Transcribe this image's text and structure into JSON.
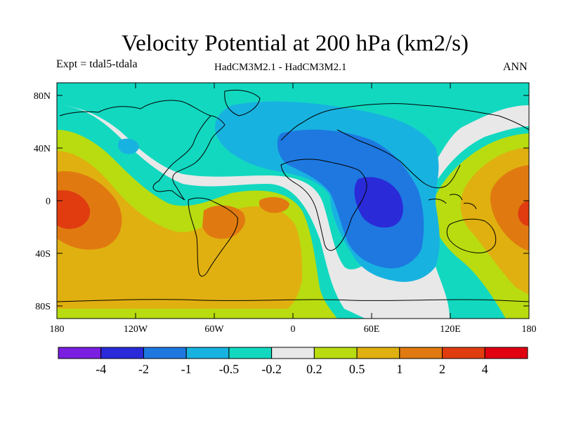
{
  "title": "Velocity Potential at 200 hPa (km2/s)",
  "expt_label": "Expt = tdal5-tdala",
  "model_label": "HadCM3M2.1 - HadCM3M2.1",
  "season_label": "ANN",
  "lat_ticks": [
    "80N",
    "40N",
    "0",
    "40S",
    "80S"
  ],
  "lon_ticks": [
    "180",
    "120W",
    "60W",
    "0",
    "60E",
    "120E",
    "180"
  ],
  "colorbar": {
    "colors": [
      "#7a1fe0",
      "#2a2ad8",
      "#1e78e0",
      "#18b2e0",
      "#12d8c0",
      "#e8e8e8",
      "#b8dc10",
      "#e0b010",
      "#e07a10",
      "#e03c10",
      "#e00010"
    ],
    "labels": [
      "-4",
      "-2",
      "-1",
      "-0.5",
      "-0.2",
      "0.2",
      "0.5",
      "1",
      "2",
      "4"
    ]
  }
}
